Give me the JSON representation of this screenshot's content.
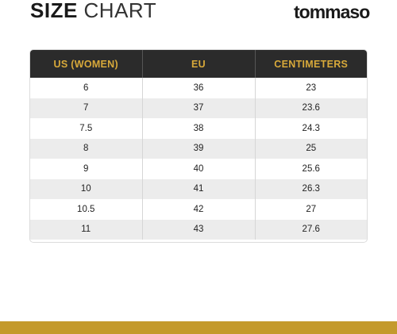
{
  "title": {
    "bold": "SIZE",
    "light": "CHART"
  },
  "brand": "tommaso",
  "table": {
    "headers": [
      "US (WOMEN)",
      "EU",
      "CENTIMETERS"
    ],
    "rows": [
      [
        "6",
        "36",
        "23"
      ],
      [
        "7",
        "37",
        "23.6"
      ],
      [
        "7.5",
        "38",
        "24.3"
      ],
      [
        "8",
        "39",
        "25"
      ],
      [
        "9",
        "40",
        "25.6"
      ],
      [
        "10",
        "41",
        "26.3"
      ],
      [
        "10.5",
        "42",
        "27"
      ],
      [
        "11",
        "43",
        "27.6"
      ]
    ]
  },
  "colors": {
    "header_bg": "#2b2b2b",
    "header_text": "#d8a93a",
    "accent_bar": "#c49a2c",
    "stripe": "#ececec"
  }
}
